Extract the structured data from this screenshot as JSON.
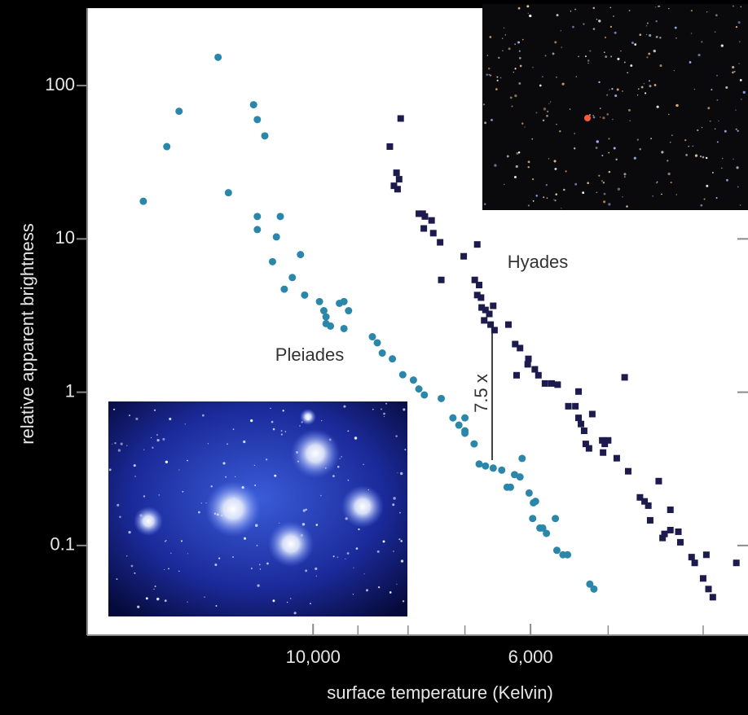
{
  "chart_data": {
    "type": "scatter",
    "x_label": "surface temperature (Kelvin)",
    "y_label": "relative apparent brightness",
    "annotation": "7.5 x",
    "xlog": true,
    "ylog": true,
    "xlim": [
      17000,
      3600
    ],
    "ylim": [
      0.026,
      320
    ],
    "xticks": [
      {
        "value": 10000,
        "label": "10,000"
      },
      {
        "value": 6000,
        "label": "6,000"
      }
    ],
    "xminor": [
      9000,
      8000,
      7000,
      5000,
      4000
    ],
    "yticks": [
      100,
      10,
      1,
      0.1
    ],
    "series": [
      {
        "name": "Pleiades",
        "color": "#2b87a9",
        "marker": "circle",
        "x": [
          14900,
          14100,
          13700,
          12500,
          12200,
          11500,
          11400,
          11200,
          11400,
          11400,
          10800,
          10900,
          11000,
          10500,
          10700,
          10300,
          10200,
          9850,
          9750,
          9700,
          9700,
          9600,
          9400,
          9300,
          9300,
          9200,
          8700,
          8600,
          8500,
          8300,
          8100,
          7900,
          7800,
          7700,
          7400,
          7200,
          7100,
          7000,
          7000,
          7000,
          6850,
          6770,
          6670,
          6550,
          6420,
          6340,
          6290,
          6230,
          6150,
          6120,
          6020,
          5960,
          5930,
          5970,
          5870,
          5830,
          5780,
          5660,
          5640,
          5560,
          5500,
          5220,
          5170
        ],
        "values": [
          17.6,
          40,
          68,
          153,
          20,
          75,
          60,
          47,
          14,
          11.5,
          14,
          10.3,
          7.1,
          5.6,
          4.7,
          7.9,
          4.3,
          3.9,
          3.4,
          3.1,
          2.8,
          2.7,
          3.8,
          3.9,
          2.6,
          3.4,
          2.3,
          2.1,
          1.8,
          1.65,
          1.3,
          1.2,
          1.05,
          0.96,
          0.91,
          0.68,
          0.61,
          0.56,
          0.68,
          0.54,
          0.46,
          0.34,
          0.33,
          0.32,
          0.31,
          0.24,
          0.24,
          0.29,
          0.28,
          0.37,
          0.22,
          0.19,
          0.194,
          0.15,
          0.13,
          0.13,
          0.12,
          0.15,
          0.093,
          0.087,
          0.087,
          0.056,
          0.052
        ]
      },
      {
        "name": "Hyades",
        "color": "#1d1b4d",
        "marker": "square",
        "x": [
          8350,
          8140,
          8220,
          8170,
          8270,
          8200,
          7800,
          7730,
          7690,
          7570,
          7710,
          7540,
          7420,
          7400,
          7020,
          6800,
          6840,
          6770,
          6800,
          6740,
          6730,
          6670,
          6610,
          6690,
          6590,
          6530,
          6550,
          6320,
          6220,
          6150,
          6030,
          6040,
          6200,
          5940,
          5890,
          5800,
          5710,
          5630,
          5360,
          5490,
          5400,
          5360,
          5330,
          5290,
          5190,
          5270,
          5230,
          5070,
          5040,
          5000,
          5060,
          4900,
          4810,
          4770,
          4640,
          4590,
          4550,
          4530,
          4440,
          4400,
          4380,
          4320,
          4320,
          4240,
          4220,
          4110,
          4080,
          3970,
          4000,
          3950,
          3910,
          3700
        ],
        "values": [
          40,
          61,
          27,
          24.5,
          22.2,
          21.1,
          14.6,
          14.6,
          14,
          13.2,
          11.7,
          10.9,
          9.5,
          5.4,
          7.7,
          9.2,
          5.4,
          5,
          4.3,
          4.14,
          3.57,
          3.44,
          3.24,
          2.94,
          2.76,
          2.54,
          3.66,
          2.76,
          2.06,
          1.94,
          1.65,
          1.52,
          1.29,
          1.41,
          1.29,
          1.14,
          1.14,
          1.12,
          1.01,
          0.81,
          0.81,
          0.68,
          0.62,
          0.56,
          0.72,
          0.46,
          0.43,
          0.485,
          0.46,
          0.485,
          0.404,
          0.371,
          1.25,
          0.305,
          0.206,
          0.194,
          0.182,
          0.146,
          0.263,
          0.112,
          0.119,
          0.171,
          0.126,
          0.123,
          0.105,
          0.084,
          0.077,
          0.087,
          0.061,
          0.052,
          0.046,
          0.077
        ]
      }
    ]
  }
}
